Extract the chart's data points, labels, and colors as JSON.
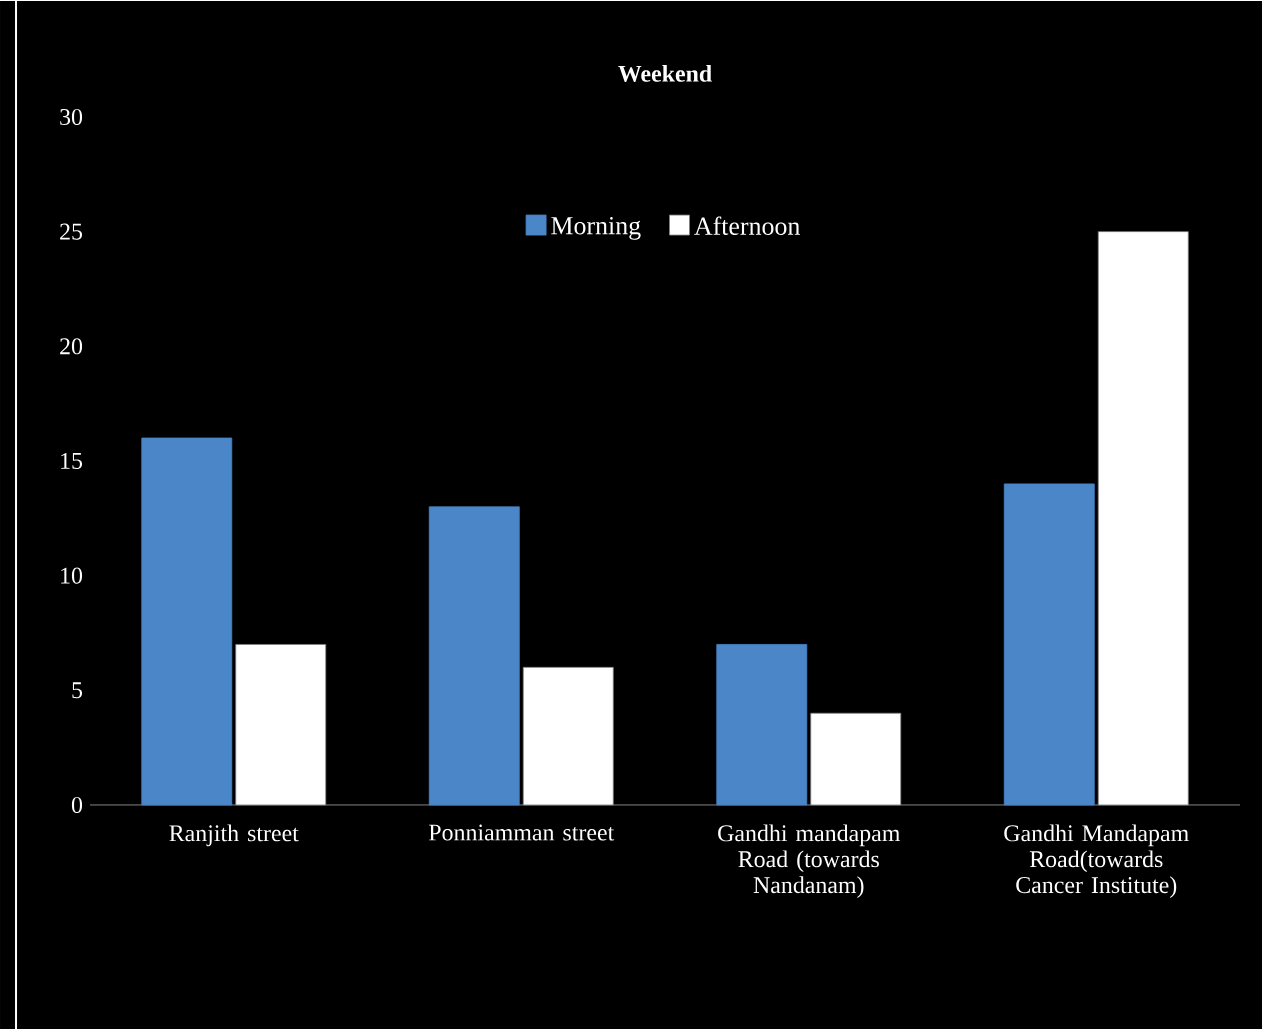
{
  "chart_data": {
    "type": "bar",
    "title": "Weekend",
    "categories": [
      "Ranjith street",
      "Ponniamman street",
      "Gandhi mandapam Road (towards Nandanam)",
      "Gandhi Mandapam Road(towards Cancer Institute)"
    ],
    "series": [
      {
        "name": "Morning",
        "color": "#4a86c8",
        "values": [
          16,
          13,
          7,
          14
        ]
      },
      {
        "name": "Afternoon",
        "color": "#ffffff",
        "values": [
          7,
          6,
          4,
          25
        ]
      }
    ],
    "ylim": [
      0,
      30
    ],
    "yticks": [
      0,
      5,
      10,
      15,
      20,
      25,
      30
    ],
    "legend": "top"
  }
}
